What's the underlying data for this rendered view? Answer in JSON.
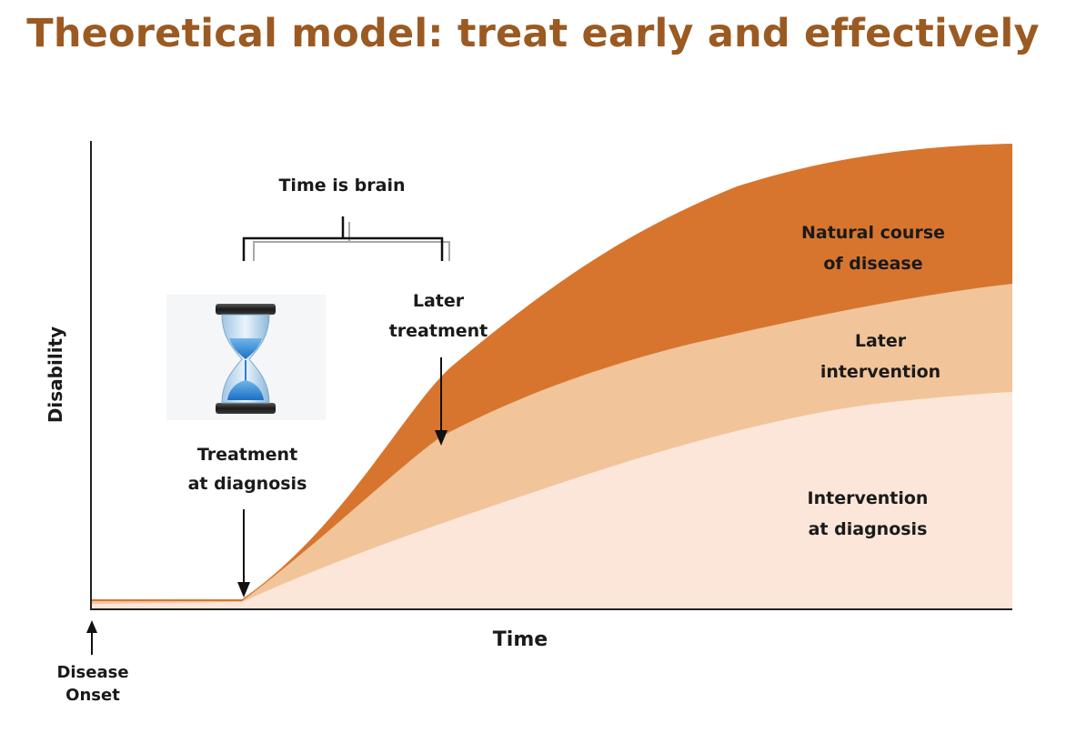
{
  "title": "Theoretical model: treat early and effectively",
  "axes": {
    "y_label": "Disability",
    "x_label": "Time"
  },
  "onset_label": [
    "Disease",
    "Onset"
  ],
  "bracket_label": "Time is brain",
  "markers": {
    "treatment_at_diagnosis": [
      "Treatment",
      "at diagnosis"
    ],
    "later_treatment": [
      "Later",
      "treatment"
    ]
  },
  "bands": [
    {
      "name": "natural",
      "label": [
        "Natural course",
        "of disease"
      ],
      "color": "#d7752f"
    },
    {
      "name": "later",
      "label": [
        "Later",
        "intervention"
      ],
      "color": "#f2c49a"
    },
    {
      "name": "diagnosis",
      "label": [
        "Intervention",
        "at diagnosis"
      ],
      "color": "#fbe6d9"
    }
  ],
  "icon": "hourglass-icon"
}
